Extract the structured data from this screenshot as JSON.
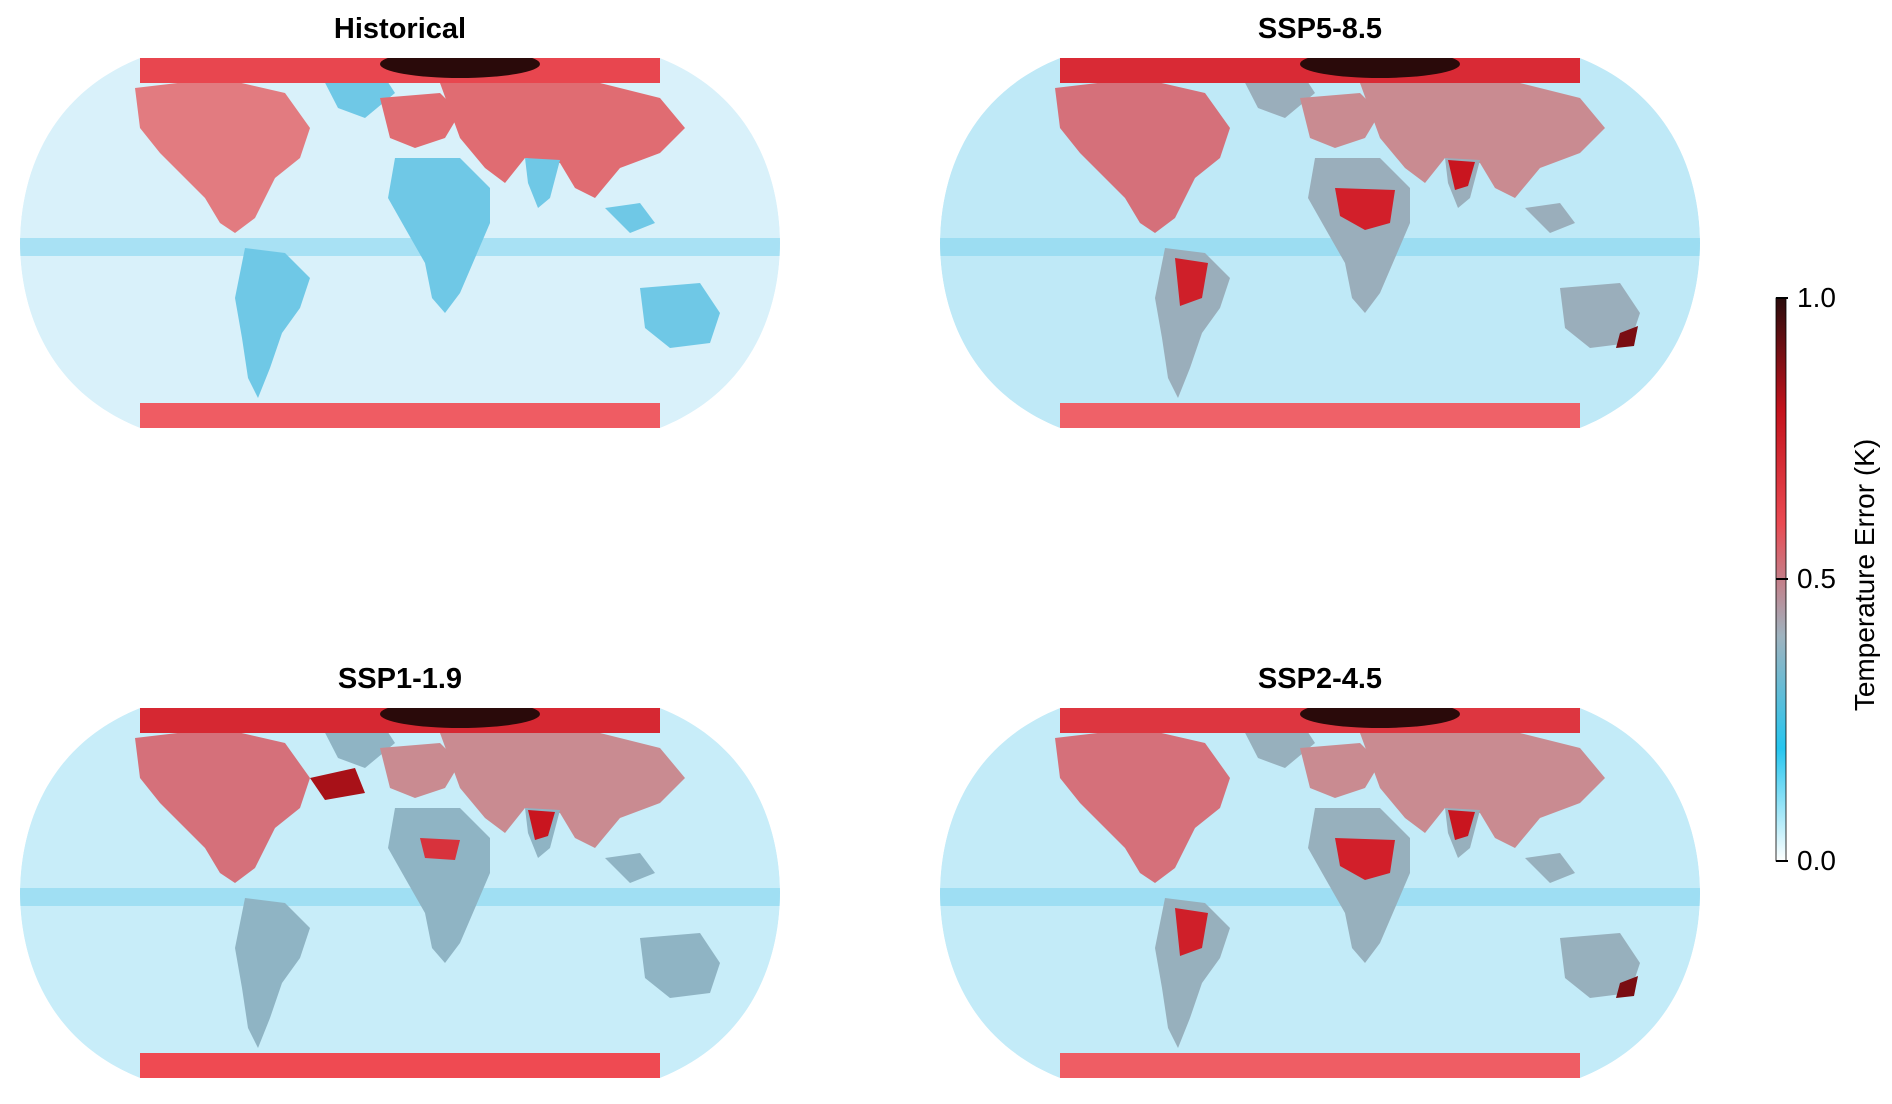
{
  "panels": [
    {
      "title": "Historical",
      "polar_north_color": "#e8464f",
      "polar_south_color": "#ef5c63",
      "land_color": "#6fc8e6",
      "ocean_color": "#d9f1fa",
      "hotspots": []
    },
    {
      "title": "SSP5-8.5",
      "polar_north_color": "#d92a35",
      "polar_south_color": "#ef6168",
      "land_color": "#9aaebb",
      "ocean_color": "#bfe9f7",
      "hotspots": [
        "africa",
        "india",
        "south-america",
        "australia-se"
      ]
    },
    {
      "title": "SSP1-1.9",
      "polar_north_color": "#d62832",
      "polar_south_color": "#ef4a52",
      "land_color": "#8fb4c4",
      "ocean_color": "#c8edf9",
      "hotspots": [
        "greenland",
        "africa-west",
        "india"
      ]
    },
    {
      "title": "SSP2-4.5",
      "polar_north_color": "#dd3640",
      "polar_south_color": "#ef5d64",
      "land_color": "#97b0bd",
      "ocean_color": "#c3ebf8",
      "hotspots": [
        "africa",
        "india",
        "south-america",
        "australia-se"
      ]
    }
  ],
  "colorbar": {
    "label": "Temperature Error (K)",
    "ticks": [
      "1.0",
      "0.5",
      "0.0"
    ],
    "range": [
      0.0,
      1.0
    ],
    "colors": [
      "#ffffff",
      "#26c6ef",
      "#9fb3bf",
      "#ea4a52",
      "#c4121c",
      "#2a0c0c"
    ]
  }
}
